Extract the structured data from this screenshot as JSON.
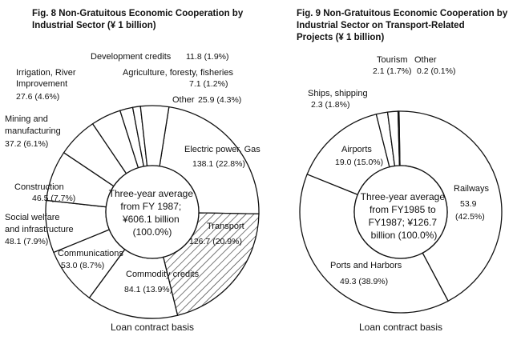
{
  "chart_data": [
    {
      "type": "pie",
      "variant": "donut",
      "title_lines": [
        "Fig. 8 Non-Gratuitous Economic Cooperation by",
        "Industrial Sector (¥ 1 billion)"
      ],
      "center_text": [
        "Three-year average",
        "from FY 1987;",
        "¥606.1 billion",
        "(100.0%)"
      ],
      "footnote": "Loan contract basis",
      "slices": [
        {
          "name": "Electric power, Gas",
          "value": 138.1,
          "percent": 22.8,
          "label_lines": [
            "Electric power, Gas"
          ],
          "value_text": "138.1 (22.8%)",
          "fill": "#ffffff"
        },
        {
          "name": "Transport",
          "value": 126.7,
          "percent": 20.9,
          "label_lines": [
            "Transport"
          ],
          "value_text": "126.7 (20.9%)",
          "fill": "hatch"
        },
        {
          "name": "Commodity credits",
          "value": 84.1,
          "percent": 13.9,
          "label_lines": [
            "Commodity credits"
          ],
          "value_text": "84.1 (13.9%)",
          "fill": "#ffffff"
        },
        {
          "name": "Communications",
          "value": 53.0,
          "percent": 8.7,
          "label_lines": [
            "Communications"
          ],
          "value_text": "53.0 (8.7%)",
          "fill": "#ffffff"
        },
        {
          "name": "Social welfare and infrastructure",
          "value": 48.1,
          "percent": 7.9,
          "label_lines": [
            "Social welfare",
            "and infrastructure"
          ],
          "value_text": "48.1 (7.9%)",
          "fill": "#ffffff"
        },
        {
          "name": "Construction",
          "value": 46.5,
          "percent": 7.7,
          "label_lines": [
            "Construction"
          ],
          "value_text": "46.5 (7.7%)",
          "fill": "#ffffff"
        },
        {
          "name": "Mining and manufacturing",
          "value": 37.2,
          "percent": 6.1,
          "label_lines": [
            "Mining and",
            "manufacturing"
          ],
          "value_text": "37.2 (6.1%)",
          "fill": "#ffffff"
        },
        {
          "name": "Irrigation, River Improvement",
          "value": 27.6,
          "percent": 4.6,
          "label_lines": [
            "Irrigation, River",
            "Improvement"
          ],
          "value_text": "27.6 (4.6%)",
          "fill": "#ffffff"
        },
        {
          "name": "Development credits",
          "value": 11.8,
          "percent": 1.9,
          "label_lines": [
            "Development credits"
          ],
          "value_text": "11.8 (1.9%)",
          "fill": "#ffffff"
        },
        {
          "name": "Agriculture, foresty, fisheries",
          "value": 7.1,
          "percent": 1.2,
          "label_lines": [
            "Agriculture, foresty, fisheries"
          ],
          "value_text": "7.1 (1.2%)",
          "fill": "#ffffff"
        },
        {
          "name": "Other",
          "value": 25.9,
          "percent": 4.3,
          "label_lines": [
            "Other"
          ],
          "value_text": "25.9 (4.3%)",
          "fill": "#ffffff"
        }
      ]
    },
    {
      "type": "pie",
      "variant": "donut",
      "title_lines": [
        "Fig. 9 Non-Gratuitous Economic Cooperation by",
        "Industrial Sector on Transport-Related",
        "Projects (¥ 1 billion)"
      ],
      "center_text": [
        "Three-year average",
        "from FY1985 to",
        "FY1987; ¥126.7",
        "billion (100.0%)"
      ],
      "footnote": "Loan contract basis",
      "slices": [
        {
          "name": "Railways",
          "value": 53.9,
          "percent": 42.5,
          "label_lines": [
            "Railways"
          ],
          "value_text": "53.9",
          "value_text2": "(42.5%)",
          "fill": "#ffffff"
        },
        {
          "name": "Ports and Harbors",
          "value": 49.3,
          "percent": 38.9,
          "label_lines": [
            "Ports and Harbors"
          ],
          "value_text": "49.3 (38.9%)",
          "fill": "#ffffff"
        },
        {
          "name": "Airports",
          "value": 19.0,
          "percent": 15.0,
          "label_lines": [
            "Airports"
          ],
          "value_text": "19.0 (15.0%)",
          "fill": "#ffffff"
        },
        {
          "name": "Ships, shipping",
          "value": 2.3,
          "percent": 1.8,
          "label_lines": [
            "Ships, shipping"
          ],
          "value_text": "2.3 (1.8%)",
          "fill": "#ffffff"
        },
        {
          "name": "Tourism",
          "value": 2.1,
          "percent": 1.7,
          "label_lines": [
            "Tourism"
          ],
          "value_text": "2.1 (1.7%)",
          "fill": "#ffffff"
        },
        {
          "name": "Other",
          "value": 0.2,
          "percent": 0.1,
          "label_lines": [
            "Other"
          ],
          "value_text": "0.2 (0.1%)",
          "fill": "#ffffff"
        }
      ]
    }
  ]
}
